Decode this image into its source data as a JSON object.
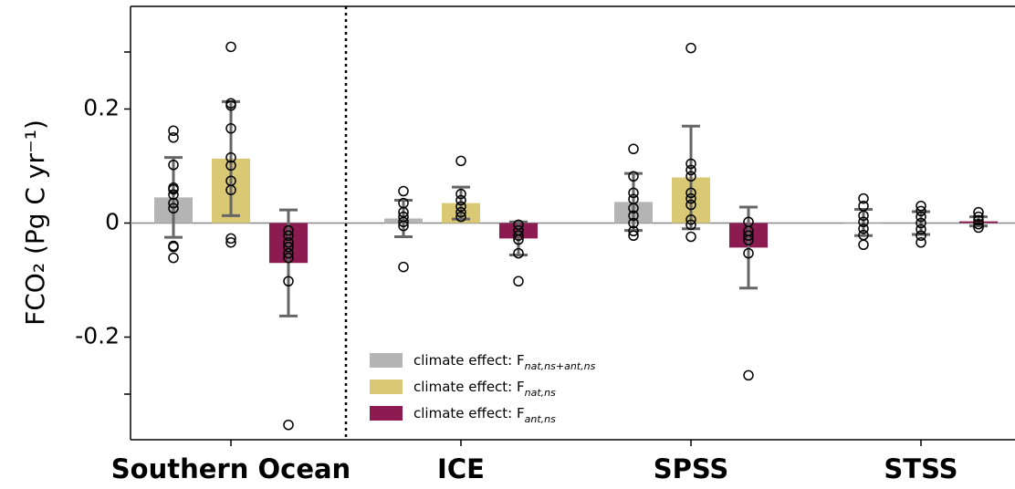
{
  "chart_data": {
    "type": "bar",
    "y_label": "FCO₂ (Pg C yr⁻¹)",
    "categories": [
      "Southern Ocean",
      "ICE",
      "SPSS",
      "STSS"
    ],
    "ylim": [
      -0.38,
      0.38
    ],
    "yticks": [
      -0.2,
      0,
      0.2
    ],
    "yminorticks": [
      -0.3,
      0.3
    ],
    "legend": "lower center",
    "series": [
      {
        "name": "climate effect: F",
        "subscript": "nat,ns+ant,ns",
        "color": "#b4b4b4",
        "values": [
          0.045,
          0.008,
          0.037,
          0.001
        ],
        "errors": [
          0.07,
          0.032,
          0.05,
          0.023
        ],
        "points": [
          [
            0.162,
            0.15,
            0.102,
            0.062,
            0.059,
            0.05,
            0.035,
            0.026,
            -0.04,
            -0.061,
            -0.042
          ],
          [
            0.056,
            0.035,
            0.019,
            0.011,
            0.002,
            -0.005,
            -0.077
          ],
          [
            0.13,
            0.082,
            0.053,
            0.042,
            0.026,
            0.013,
            0,
            -0.014,
            -0.022
          ],
          [
            0.043,
            0.03,
            0.013,
            0.002,
            -0.01,
            -0.021,
            -0.038
          ]
        ]
      },
      {
        "name": "climate effect: F",
        "subscript": "nat,ns",
        "color": "#d9c874",
        "values": [
          0.113,
          0.035,
          0.08,
          0.0
        ],
        "errors": [
          0.1,
          0.028,
          0.09,
          0.02
        ],
        "points": [
          [
            0.309,
            0.21,
            0.206,
            0.166,
            0.115,
            0.101,
            0.074,
            0.058,
            -0.027,
            -0.034
          ],
          [
            0.109,
            0.051,
            0.04,
            0.029,
            0.019,
            0.011
          ],
          [
            0.307,
            0.104,
            0.093,
            0.082,
            0.053,
            0.043,
            0.032,
            0.006,
            -0.003,
            -0.024
          ],
          [
            0.03,
            0.021,
            0.011,
            0.0,
            -0.011,
            -0.022,
            -0.034
          ]
        ]
      },
      {
        "name": "climate effect: F",
        "subscript": "ant,ns",
        "color": "#8c1b52",
        "values": [
          -0.07,
          -0.027,
          -0.043,
          0.003
        ],
        "errors": [
          0.093,
          0.029,
          0.071,
          0.008
        ],
        "points": [
          [
            -0.013,
            -0.022,
            -0.034,
            -0.042,
            -0.053,
            -0.061,
            -0.102,
            -0.354
          ],
          [
            -0.003,
            -0.013,
            -0.022,
            -0.029,
            -0.053,
            -0.102
          ],
          [
            0.002,
            -0.014,
            -0.022,
            -0.03,
            -0.053,
            -0.267
          ],
          [
            0.019,
            0.011,
            0.005,
            -0.002,
            -0.008
          ]
        ]
      }
    ]
  }
}
